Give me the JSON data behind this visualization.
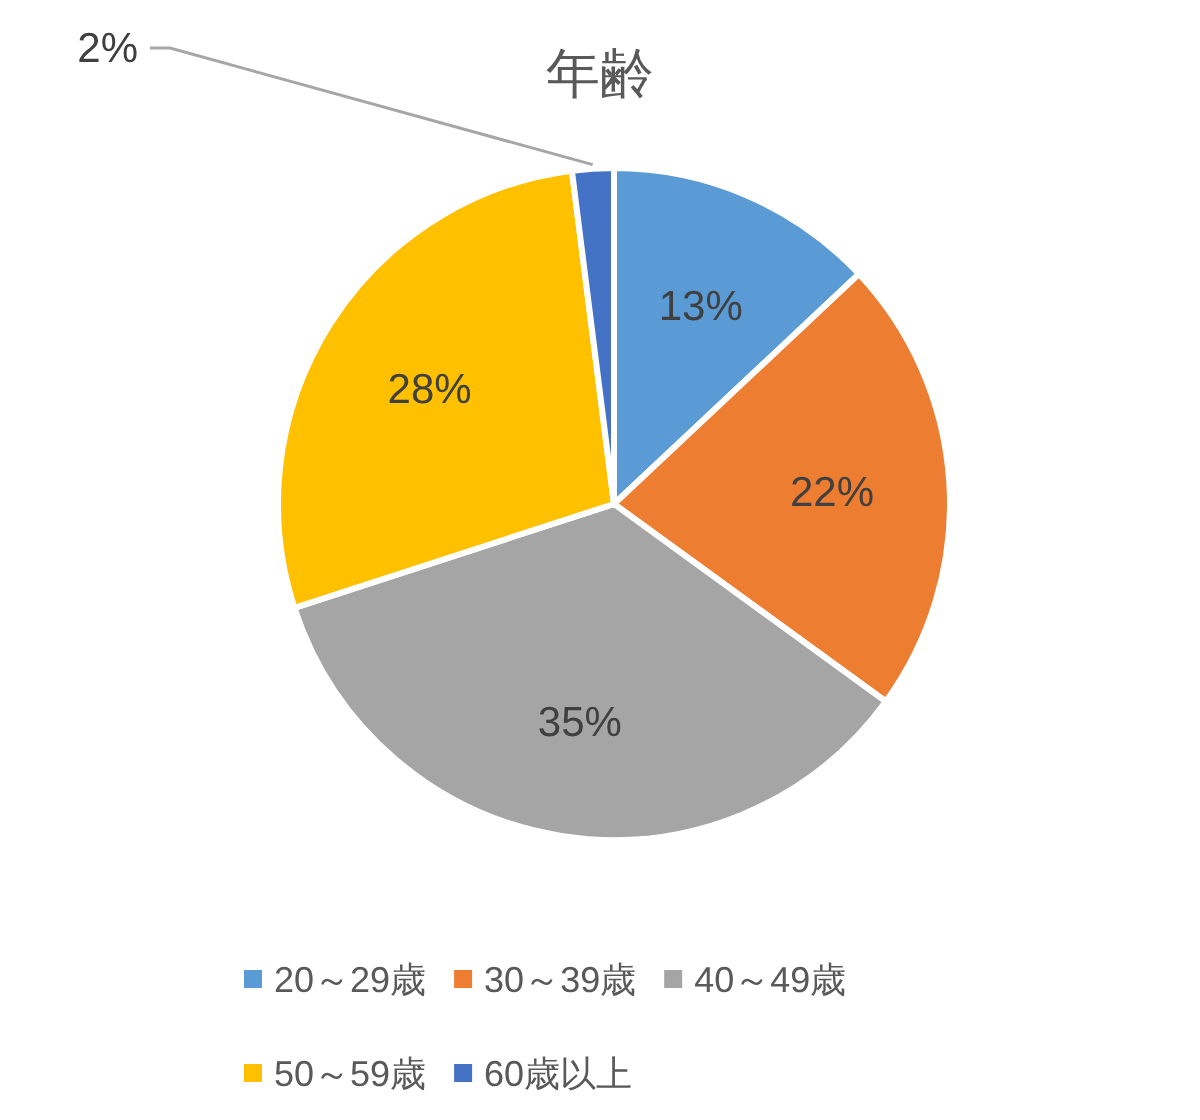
{
  "chart_data": {
    "type": "pie",
    "title": "年齢",
    "categories": [
      "20～29歳",
      "30～39歳",
      "40～49歳",
      "50～59歳",
      "60歳以上"
    ],
    "values": [
      13,
      22,
      35,
      28,
      2
    ],
    "colors": [
      "#5b9bd5",
      "#ed7d31",
      "#a5a5a5",
      "#ffc000",
      "#4472c4"
    ],
    "value_labels": [
      "13%",
      "22%",
      "35%",
      "28%",
      "2%"
    ],
    "legend": "bottom"
  }
}
